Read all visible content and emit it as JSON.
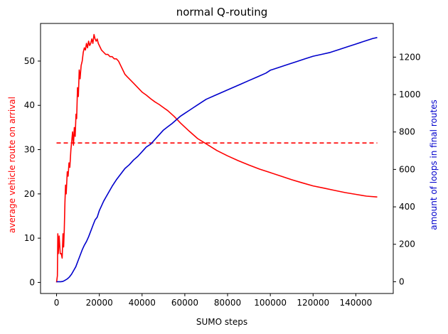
{
  "chart_data": {
    "type": "line",
    "title": "normal Q-routing",
    "xlabel": "SUMO steps",
    "ylabel_left": "average vehicle route on arrival",
    "ylabel_right": "amount of loops in final routes",
    "xlim": [
      -7500,
      157500
    ],
    "ylim_left": [
      -2.5,
      58.5
    ],
    "ylim_right": [
      -63,
      1380
    ],
    "x_ticks": [
      0,
      20000,
      40000,
      60000,
      80000,
      100000,
      120000,
      140000
    ],
    "y_left_ticks": [
      0,
      10,
      20,
      30,
      40,
      50
    ],
    "y_right_ticks": [
      0,
      200,
      400,
      600,
      800,
      1000,
      1200
    ],
    "grid": false,
    "colors": {
      "left": "#ff0000",
      "right": "#0000cc"
    },
    "series": [
      {
        "axis": "left",
        "color": "#ff0000",
        "x": [
          0,
          400,
          600,
          800,
          1200,
          1700,
          2200,
          2600,
          3000,
          3300,
          3600,
          3900,
          4200,
          4500,
          5000,
          5400,
          5800,
          6200,
          6700,
          7100,
          7500,
          7900,
          8300,
          8700,
          9100,
          9400,
          9800,
          10200,
          10600,
          11000,
          11500,
          12000,
          12500,
          13000,
          13500,
          14000,
          14500,
          15000,
          15500,
          16000,
          16500,
          17000,
          17500,
          18000,
          18500,
          19000,
          19500,
          20000,
          21000,
          22000,
          23000,
          24000,
          25000,
          26000,
          27000,
          28000,
          29000,
          30000,
          31000,
          32000,
          33000,
          34000,
          36000,
          38000,
          40000,
          42000,
          44000,
          46000,
          48000,
          50000,
          52000,
          55000,
          58000,
          62000,
          66000,
          70000,
          75000,
          80000,
          85000,
          90000,
          95000,
          100000,
          105000,
          110000,
          115000,
          120000,
          125000,
          130000,
          135000,
          140000,
          145000,
          150000
        ],
        "y": [
          0,
          1.5,
          11,
          6.5,
          10.5,
          6.5,
          6.5,
          5.5,
          11,
          8,
          12,
          18,
          22,
          20,
          25,
          24,
          27,
          26,
          30,
          32,
          34,
          31,
          35,
          33,
          38,
          37,
          44,
          42,
          48,
          46,
          49,
          50,
          52,
          53,
          52.5,
          54,
          53,
          54.5,
          53.5,
          54,
          55,
          54,
          56,
          55,
          54.5,
          55,
          54,
          53.5,
          52.5,
          52,
          51.5,
          51.5,
          51,
          51,
          50.5,
          50.5,
          50,
          49,
          48,
          47,
          46.5,
          46,
          45,
          44,
          43,
          42.3,
          41.5,
          40.8,
          40.2,
          39.5,
          38.8,
          37.5,
          36,
          34.2,
          32.5,
          31.3,
          29.8,
          28.6,
          27.5,
          26.5,
          25.6,
          24.8,
          24,
          23.2,
          22.5,
          21.8,
          21.3,
          20.8,
          20.3,
          19.9,
          19.5,
          19.3
        ]
      },
      {
        "axis": "left",
        "color": "#ff0000",
        "style": "dashed",
        "x": [
          0,
          150000
        ],
        "y": [
          31.5,
          31.5
        ]
      },
      {
        "axis": "right",
        "color": "#0000cc",
        "x": [
          0,
          2000,
          3000,
          4000,
          5000,
          6000,
          7000,
          8000,
          9000,
          10000,
          11000,
          12000,
          13000,
          14000,
          15000,
          16000,
          17000,
          18000,
          19000,
          20000,
          21000,
          22000,
          23000,
          24000,
          26000,
          28000,
          30000,
          32000,
          34000,
          36000,
          38000,
          40000,
          42000,
          44000,
          46000,
          48000,
          50000,
          52000,
          54000,
          56000,
          58000,
          60000,
          62000,
          64000,
          66000,
          68000,
          70000,
          74000,
          78000,
          82000,
          86000,
          90000,
          94000,
          98000,
          100000,
          104000,
          108000,
          112000,
          116000,
          120000,
          124000,
          128000,
          132000,
          136000,
          140000,
          144000,
          148000,
          150000
        ],
        "y": [
          0,
          0,
          2,
          8,
          15,
          25,
          40,
          60,
          80,
          110,
          140,
          170,
          195,
          215,
          240,
          270,
          300,
          330,
          345,
          380,
          405,
          430,
          450,
          470,
          510,
          545,
          575,
          605,
          625,
          650,
          670,
          695,
          720,
          735,
          760,
          785,
          810,
          828,
          845,
          865,
          885,
          900,
          915,
          930,
          945,
          960,
          975,
          995,
          1015,
          1035,
          1055,
          1075,
          1095,
          1115,
          1130,
          1145,
          1160,
          1175,
          1190,
          1205,
          1215,
          1225,
          1240,
          1255,
          1270,
          1285,
          1300,
          1305
        ]
      }
    ]
  }
}
